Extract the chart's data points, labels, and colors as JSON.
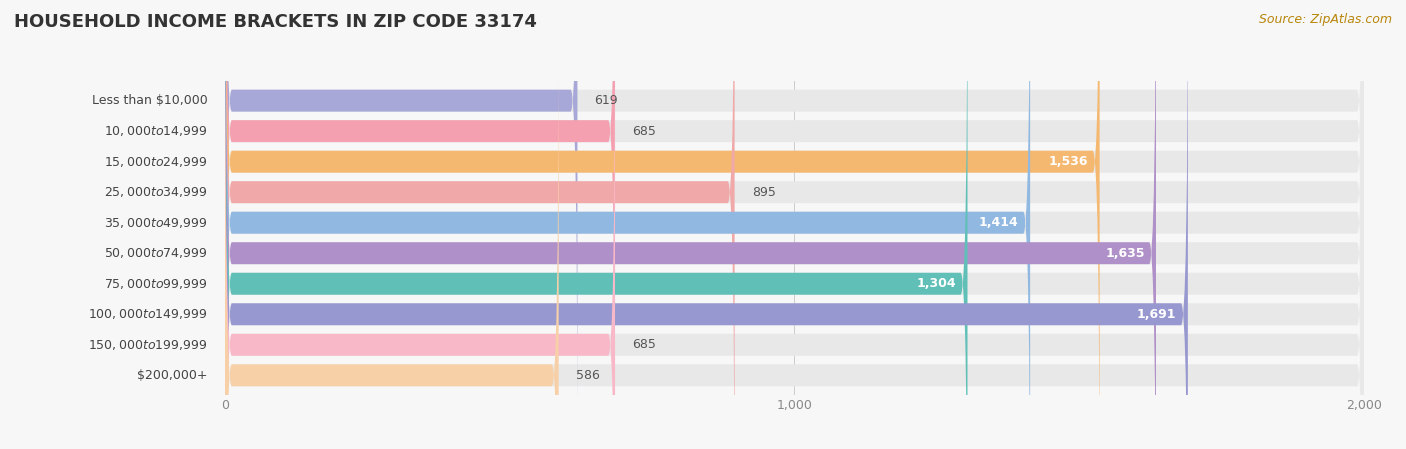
{
  "title": "HOUSEHOLD INCOME BRACKETS IN ZIP CODE 33174",
  "source": "Source: ZipAtlas.com",
  "categories": [
    "Less than $10,000",
    "$10,000 to $14,999",
    "$15,000 to $24,999",
    "$25,000 to $34,999",
    "$35,000 to $49,999",
    "$50,000 to $74,999",
    "$75,000 to $99,999",
    "$100,000 to $149,999",
    "$150,000 to $199,999",
    "$200,000+"
  ],
  "values": [
    619,
    685,
    1536,
    895,
    1414,
    1635,
    1304,
    1691,
    685,
    586
  ],
  "bar_colors": [
    "#a8a8d8",
    "#f4a0b0",
    "#f5b870",
    "#f0a8a8",
    "#90b8e0",
    "#b090c8",
    "#60c0b8",
    "#9898d0",
    "#f8b8c8",
    "#f8d0a8"
  ],
  "label_colors_inside": [
    "#666666",
    "#666666",
    "#ffffff",
    "#888888",
    "#ffffff",
    "#ffffff",
    "#ffffff",
    "#ffffff",
    "#666666",
    "#666666"
  ],
  "value_inside": [
    false,
    false,
    true,
    false,
    true,
    true,
    true,
    true,
    false,
    false
  ],
  "background_color": "#f7f7f7",
  "row_bg_color": "#e8e8e8",
  "xlim": [
    0,
    2000
  ],
  "title_fontsize": 13,
  "label_fontsize": 9,
  "value_fontsize": 9,
  "source_fontsize": 9,
  "xtick_labels": [
    "0",
    "1,000",
    "2,000"
  ],
  "xtick_values": [
    0,
    1000,
    2000
  ]
}
